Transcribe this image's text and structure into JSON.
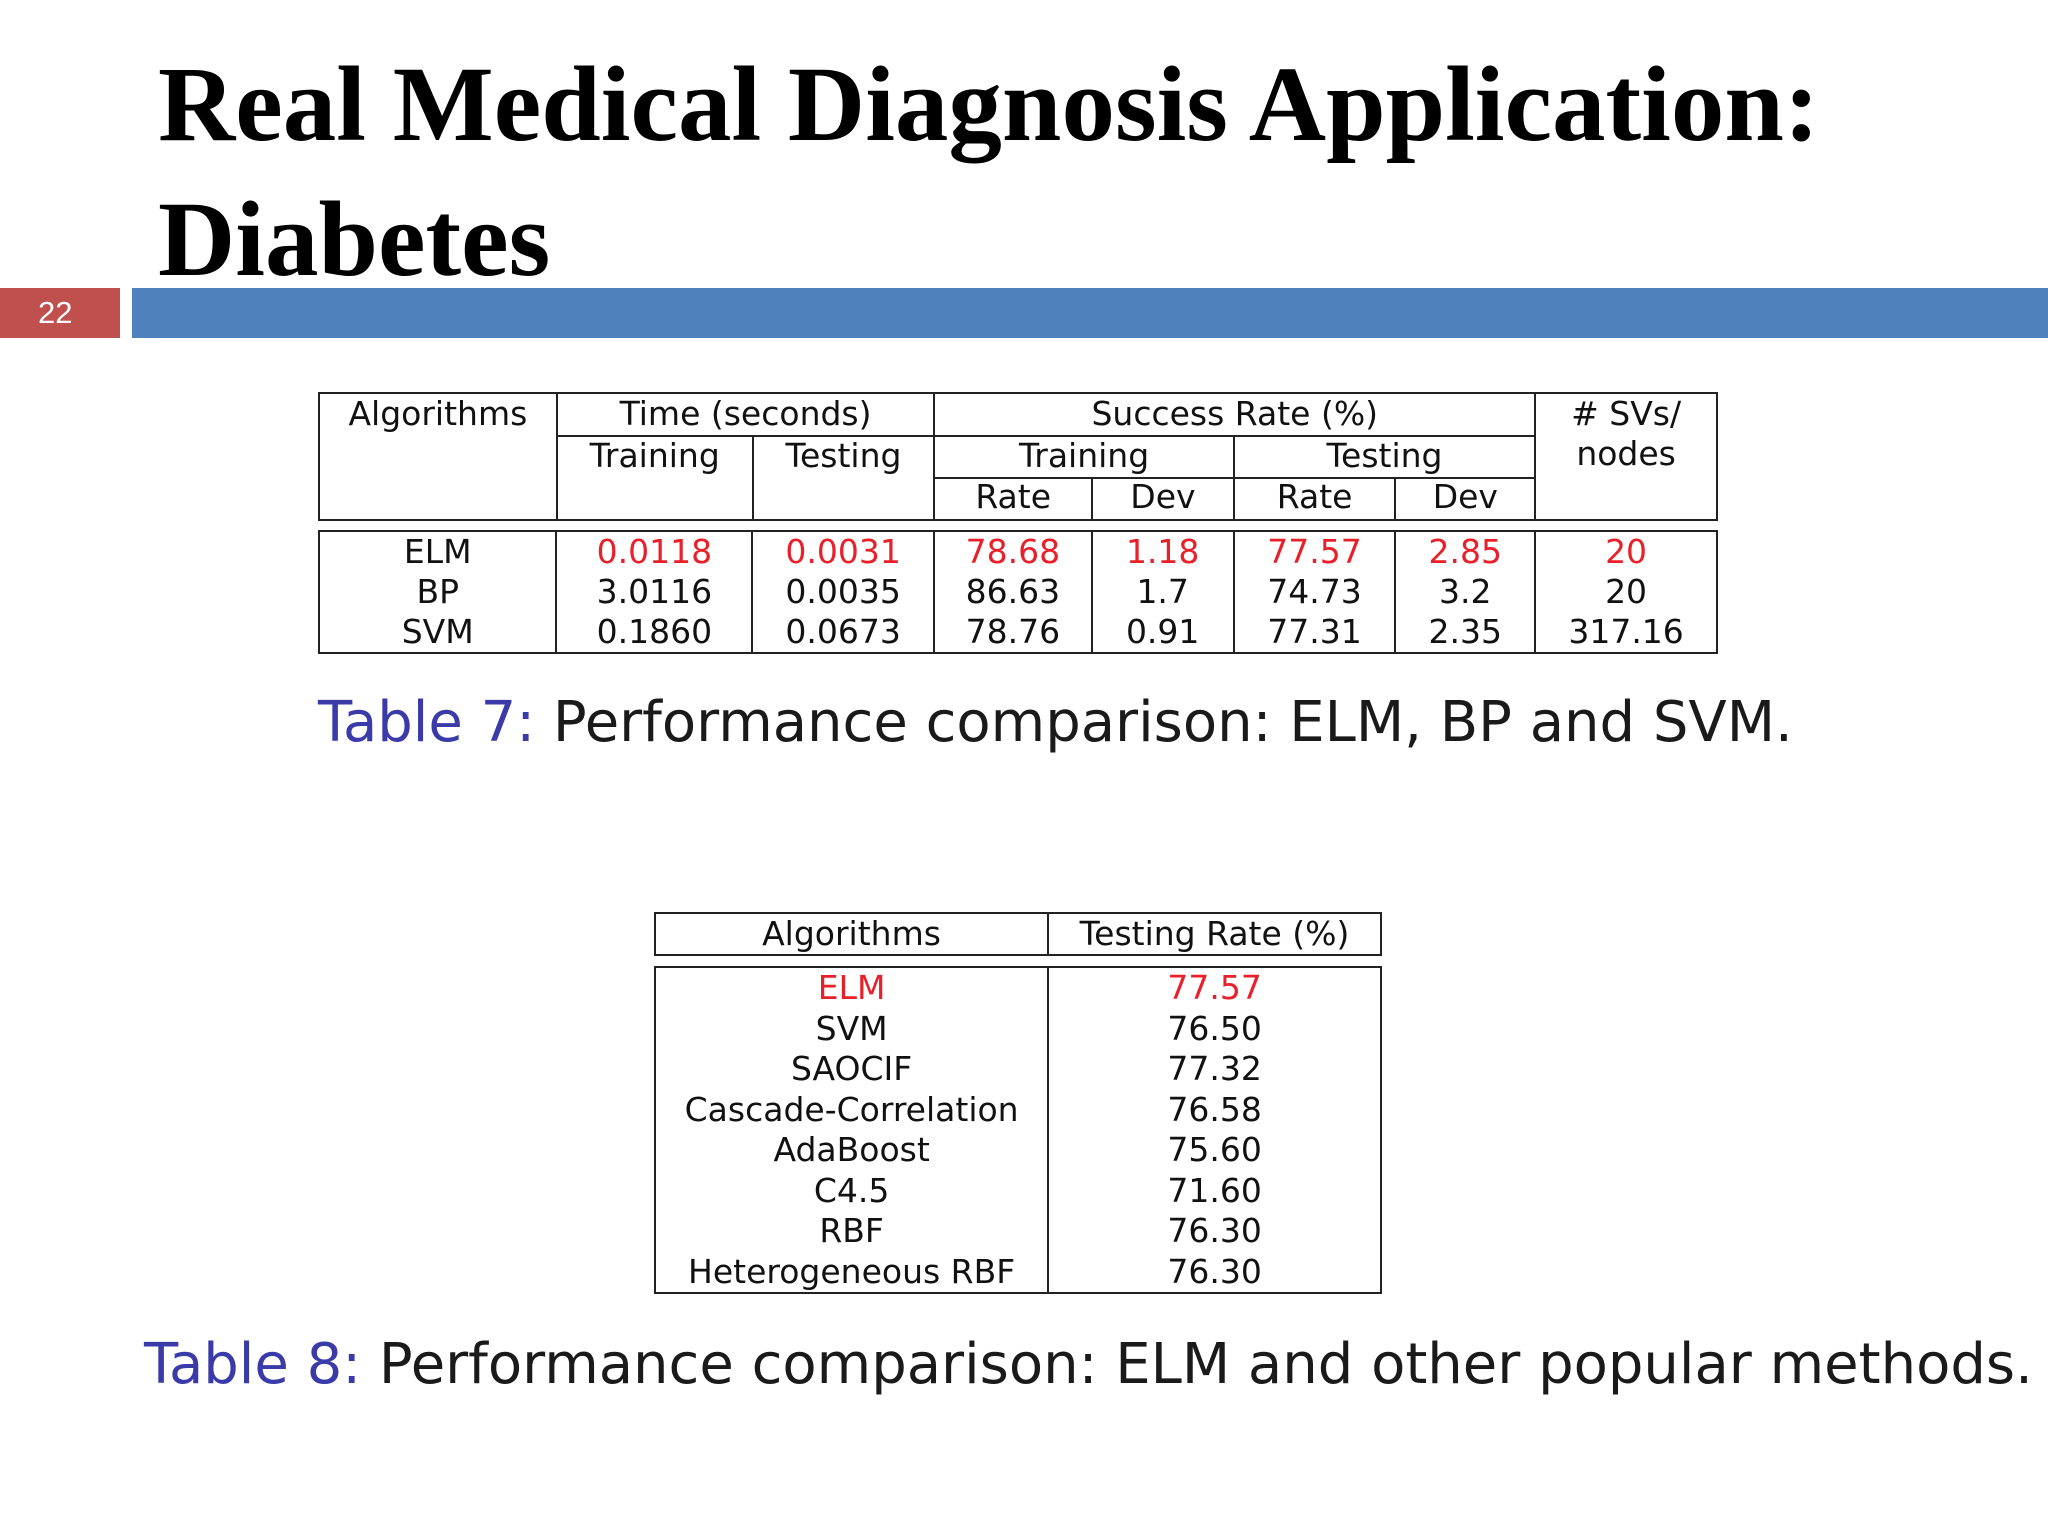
{
  "slide": {
    "title": "Real Medical Diagnosis Application: Diabetes",
    "number": "22"
  },
  "colors": {
    "slide_number_bg": "#c0504d",
    "title_bar": "#4f81bd",
    "highlight": "#e8202a",
    "caption_label": "#3a3aa8"
  },
  "table7": {
    "headers": {
      "algorithms": "Algorithms",
      "time": "Time (seconds)",
      "time_training": "Training",
      "time_testing": "Testing",
      "success_rate": "Success Rate (%)",
      "sr_training": "Training",
      "sr_testing": "Testing",
      "rate_1": "Rate",
      "dev_1": "Dev",
      "rate_2": "Rate",
      "dev_2": "Dev",
      "svs_line1": "# SVs/",
      "svs_line2": "nodes"
    },
    "rows": [
      [
        "ELM",
        "0.0118",
        "0.0031",
        "78.68",
        "1.18",
        "77.57",
        "2.85",
        "20"
      ],
      [
        "BP",
        "3.0116",
        "0.0035",
        "86.63",
        "1.7",
        "74.73",
        "3.2",
        "20"
      ],
      [
        "SVM",
        "0.1860",
        "0.0673",
        "78.76",
        "0.91",
        "77.31",
        "2.35",
        "317.16"
      ]
    ],
    "caption_label": "Table 7:",
    "caption_text": "Performance comparison: ELM, BP and SVM."
  },
  "table8": {
    "headers": {
      "algorithms": "Algorithms",
      "testing_rate": "Testing Rate (%)"
    },
    "rows": [
      [
        "ELM",
        "77.57"
      ],
      [
        "SVM",
        "76.50"
      ],
      [
        "SAOCIF",
        "77.32"
      ],
      [
        "Cascade-Correlation",
        "76.58"
      ],
      [
        "AdaBoost",
        "75.60"
      ],
      [
        "C4.5",
        "71.60"
      ],
      [
        "RBF",
        "76.30"
      ],
      [
        "Heterogeneous RBF",
        "76.30"
      ]
    ],
    "caption_label": "Table 8:",
    "caption_text": "Performance comparison: ELM and other popular methods."
  }
}
